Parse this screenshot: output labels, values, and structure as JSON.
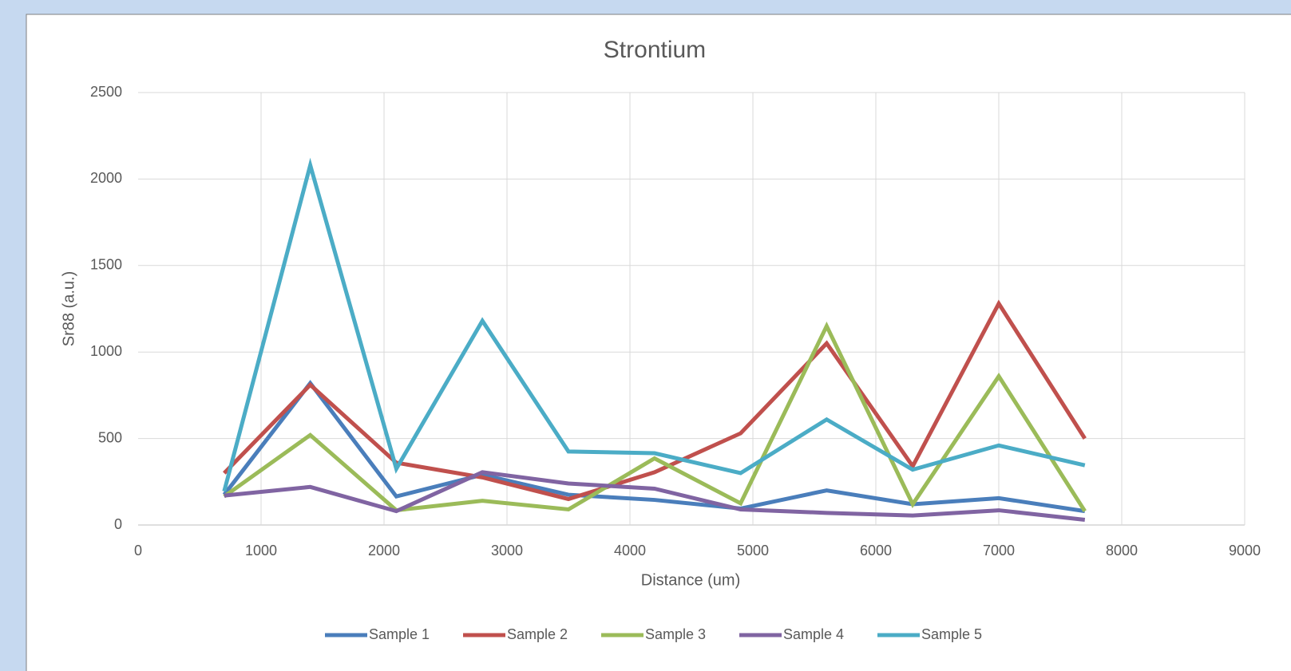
{
  "chart_data": {
    "type": "line",
    "title": "Strontium",
    "x_label": "Distance (um)",
    "y_label": "Sr88 (a.u.)",
    "x": [
      700,
      1400,
      2100,
      2800,
      3500,
      4200,
      4900,
      5600,
      6300,
      7000,
      7700
    ],
    "series": [
      {
        "name": "Sample 1",
        "color": "#4a7ebb",
        "values": [
          175,
          820,
          165,
          290,
          175,
          145,
          95,
          200,
          120,
          155,
          80
        ]
      },
      {
        "name": "Sample 2",
        "color": "#c0504d",
        "values": [
          300,
          810,
          360,
          275,
          150,
          305,
          530,
          1050,
          340,
          1280,
          500
        ]
      },
      {
        "name": "Sample 3",
        "color": "#9bbb59",
        "values": [
          165,
          520,
          85,
          140,
          90,
          385,
          125,
          1150,
          120,
          860,
          80
        ]
      },
      {
        "name": "Sample 4",
        "color": "#8064a2",
        "values": [
          170,
          220,
          80,
          305,
          240,
          210,
          90,
          70,
          55,
          85,
          30
        ]
      },
      {
        "name": "Sample 5",
        "color": "#4bacc6",
        "values": [
          195,
          2080,
          325,
          1180,
          425,
          415,
          300,
          610,
          320,
          460,
          345
        ]
      }
    ],
    "xlim": [
      0,
      9000
    ],
    "xticks": [
      0,
      1000,
      2000,
      3000,
      4000,
      5000,
      6000,
      7000,
      8000,
      9000
    ],
    "ylim": [
      0,
      2500
    ],
    "yticks": [
      0,
      500,
      1000,
      1500,
      2000,
      2500
    ],
    "grid": true,
    "legend": "bottom"
  }
}
